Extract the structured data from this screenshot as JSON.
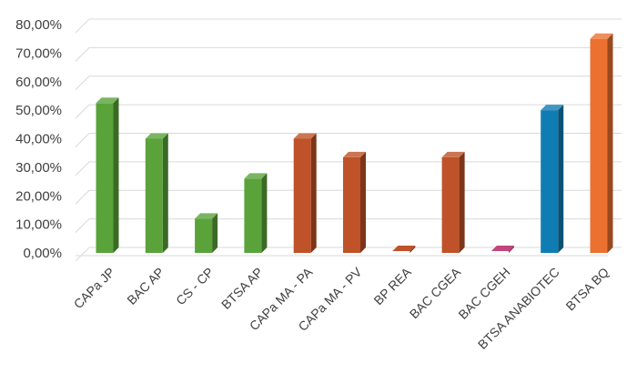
{
  "chart_data": {
    "type": "bar",
    "title": "",
    "xlabel": "",
    "ylabel": "",
    "ylim": [
      0,
      80
    ],
    "yticks": [
      "0,00%",
      "10,00%",
      "20,00%",
      "30,00%",
      "40,00%",
      "50,00%",
      "60,00%",
      "70,00%",
      "80,00%"
    ],
    "grid": true,
    "legend": "none",
    "style": "3d-bars",
    "categories": [
      "CAPa JP",
      "BAC AP",
      "CS - CP",
      "BTSA AP",
      "CAPa MA - PA",
      "CAPa MA - PV",
      "BP REA",
      "BAC CGEA",
      "BAC CGEH",
      "BTSA ANABIOTEC",
      "BTSA BQ"
    ],
    "values": [
      52.5,
      40,
      12,
      26,
      40,
      33.5,
      0,
      33.5,
      0,
      50,
      75
    ],
    "colors": [
      "#5aa33a",
      "#5aa33a",
      "#5aa33a",
      "#5aa33a",
      "#bf5228",
      "#bf5228",
      "#bf5228",
      "#bf5228",
      "#c2457e",
      "#0f7db3",
      "#ec7030"
    ]
  }
}
